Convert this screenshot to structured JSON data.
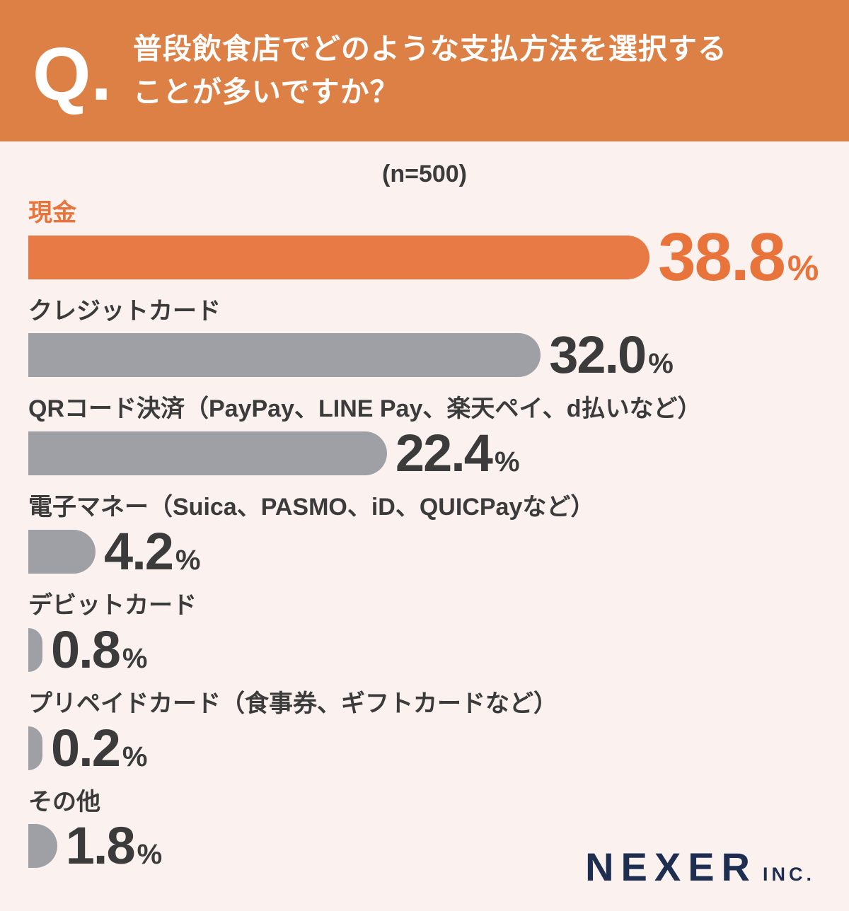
{
  "chart_data": {
    "type": "bar",
    "orientation": "horizontal",
    "title": "普段飲食店でどのような支払方法を選択することが多いですか？",
    "sample_note": "(n=500)",
    "categories": [
      "現金",
      "クレジットカード",
      "QRコード決済（PayPay、LINE Pay、楽天ペイ、d払いなど）",
      "電子マネー（Suica、PASMO、iD、QUICPayなど）",
      "デビットカード",
      "プリペイドカード（食事券、ギフトカードなど）",
      "その他"
    ],
    "values": [
      38.8,
      32.0,
      22.4,
      4.2,
      0.8,
      0.2,
      1.8
    ],
    "value_labels": [
      "38.8",
      "32.0",
      "22.4",
      "4.2",
      "0.8",
      "0.2",
      "1.8"
    ],
    "unit": "%",
    "max_value": 38.8,
    "highlight_index": 0,
    "xlim": [
      0,
      38.8
    ],
    "grid": false,
    "legend": false
  },
  "header": {
    "q_label": "Q.",
    "line1": "普段飲食店でどのような支払方法を選択する",
    "line2": "ことが多いですか？"
  },
  "footer": {
    "logo_text": "NEXER",
    "logo_suffix": "INC."
  },
  "colors": {
    "accent": "#E8743C",
    "accent_bar": "#E87A46",
    "header_bg": "#DD8045",
    "bar_gray": "#9EA0A5",
    "text": "#3B3B3B",
    "navy": "#1E2E50",
    "page_bg": "#FBF1EE"
  }
}
